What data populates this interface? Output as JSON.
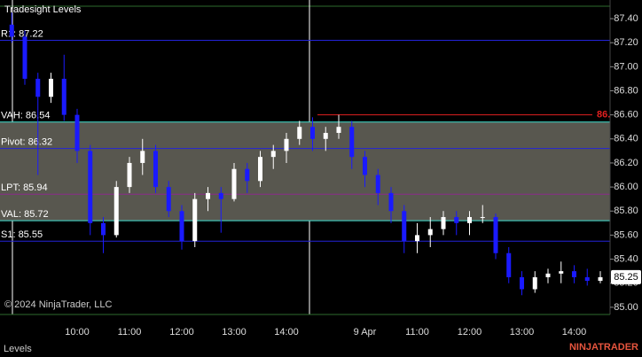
{
  "chart_data": {
    "type": "candlestick",
    "title": "Tradesight Levels",
    "categories": [
      null,
      null,
      null,
      null,
      null,
      "10:00",
      null,
      null,
      null,
      "11:00",
      null,
      null,
      null,
      "12:00",
      null,
      null,
      null,
      "13:00",
      null,
      null,
      null,
      "14:00",
      null,
      null,
      null,
      null,
      null,
      "9 Apr",
      null,
      null,
      null,
      "11:00",
      null,
      null,
      null,
      "12:00",
      null,
      null,
      null,
      "13:00",
      null,
      null,
      null,
      "14:00",
      null,
      null
    ],
    "open": [
      87.35,
      87.25,
      86.9,
      86.75,
      86.9,
      86.6,
      86.3,
      85.7,
      85.6,
      86.0,
      86.2,
      86.3,
      86.0,
      85.8,
      85.55,
      85.9,
      85.95,
      85.9,
      86.15,
      86.05,
      86.25,
      86.3,
      86.4,
      86.5,
      86.4,
      86.45,
      86.5,
      86.25,
      86.1,
      85.95,
      85.8,
      85.55,
      85.6,
      85.65,
      85.75,
      85.7,
      85.75,
      85.75,
      85.45,
      85.25,
      85.15,
      85.25,
      85.28,
      85.3,
      85.25,
      85.22
    ],
    "high": [
      87.45,
      87.3,
      86.95,
      86.95,
      87.1,
      86.65,
      86.35,
      85.75,
      86.05,
      86.25,
      86.4,
      86.35,
      86.05,
      85.85,
      85.95,
      86.0,
      86.0,
      86.2,
      86.2,
      86.3,
      86.35,
      86.45,
      86.55,
      86.58,
      86.5,
      86.6,
      86.55,
      86.3,
      86.15,
      86.0,
      85.85,
      85.7,
      85.75,
      85.8,
      85.8,
      85.8,
      85.85,
      85.78,
      85.5,
      85.3,
      85.3,
      85.32,
      85.38,
      85.35,
      85.32,
      85.3
    ],
    "low": [
      87.2,
      86.85,
      86.1,
      86.7,
      86.55,
      86.2,
      85.6,
      85.45,
      85.58,
      85.95,
      86.1,
      85.95,
      85.75,
      85.48,
      85.5,
      85.8,
      85.62,
      85.88,
      85.95,
      86.0,
      86.15,
      86.2,
      86.35,
      86.3,
      86.3,
      86.4,
      86.15,
      86.0,
      85.85,
      85.7,
      85.45,
      85.45,
      85.5,
      85.6,
      85.6,
      85.6,
      85.7,
      85.4,
      85.2,
      85.1,
      85.12,
      85.2,
      85.2,
      85.2,
      85.18,
      85.2
    ],
    "close": [
      87.25,
      86.9,
      86.75,
      86.9,
      86.6,
      86.3,
      85.7,
      85.6,
      86.0,
      86.2,
      86.3,
      86.0,
      85.8,
      85.55,
      85.9,
      85.95,
      85.9,
      86.15,
      86.05,
      86.25,
      86.3,
      86.4,
      86.5,
      86.4,
      86.45,
      86.5,
      86.25,
      86.1,
      85.95,
      85.8,
      85.55,
      85.6,
      85.65,
      85.75,
      85.7,
      85.75,
      85.75,
      85.45,
      85.25,
      85.15,
      85.25,
      85.28,
      85.3,
      85.25,
      85.22,
      85.25
    ],
    "up_color": "#ffffff",
    "down_color": "#1a1aff",
    "ylim": [
      84.94,
      87.555
    ],
    "yticks": [
      {
        "value": 85.0,
        "label": "85.00"
      },
      {
        "value": 85.2,
        "label": "85.20"
      },
      {
        "value": 85.4,
        "label": "85.40"
      },
      {
        "value": 85.6,
        "label": "85.60"
      },
      {
        "value": 85.8,
        "label": "85.80"
      },
      {
        "value": 86.0,
        "label": "86.00"
      },
      {
        "value": 86.2,
        "label": "86.20"
      },
      {
        "value": 86.4,
        "label": "86.40"
      },
      {
        "value": 86.6,
        "label": "86.60"
      },
      {
        "value": 86.8,
        "label": "86.80"
      },
      {
        "value": 87.0,
        "label": "87.00"
      },
      {
        "value": 87.2,
        "label": "87.20"
      },
      {
        "value": 87.4,
        "label": "87.40"
      }
    ],
    "levels": [
      {
        "label": "R1: 87.22",
        "value": 87.22,
        "color": "#2323d8"
      },
      {
        "label": "VAH: 86.54",
        "value": 86.54,
        "color": "#40e0d0",
        "shade": true
      },
      {
        "label": "Pivot: 86.32",
        "value": 86.32,
        "color": "#2323d8"
      },
      {
        "label": "LPT: 85.94",
        "value": 85.94,
        "color": "#8b2a8b"
      },
      {
        "label": "VAL: 85.72",
        "value": 85.72,
        "color": "#40e0d0",
        "shade": true
      },
      {
        "label": "S1: 85.55",
        "value": 85.55,
        "color": "#2323d8"
      }
    ],
    "value_area_color": "#58574f",
    "alert_line": {
      "value": 86.6,
      "label": "86.60",
      "color": "#e02020"
    },
    "copyright": "© 2024 NinjaTrader, LLC",
    "footer": "Levels",
    "logo": "NINJATRADER"
  }
}
